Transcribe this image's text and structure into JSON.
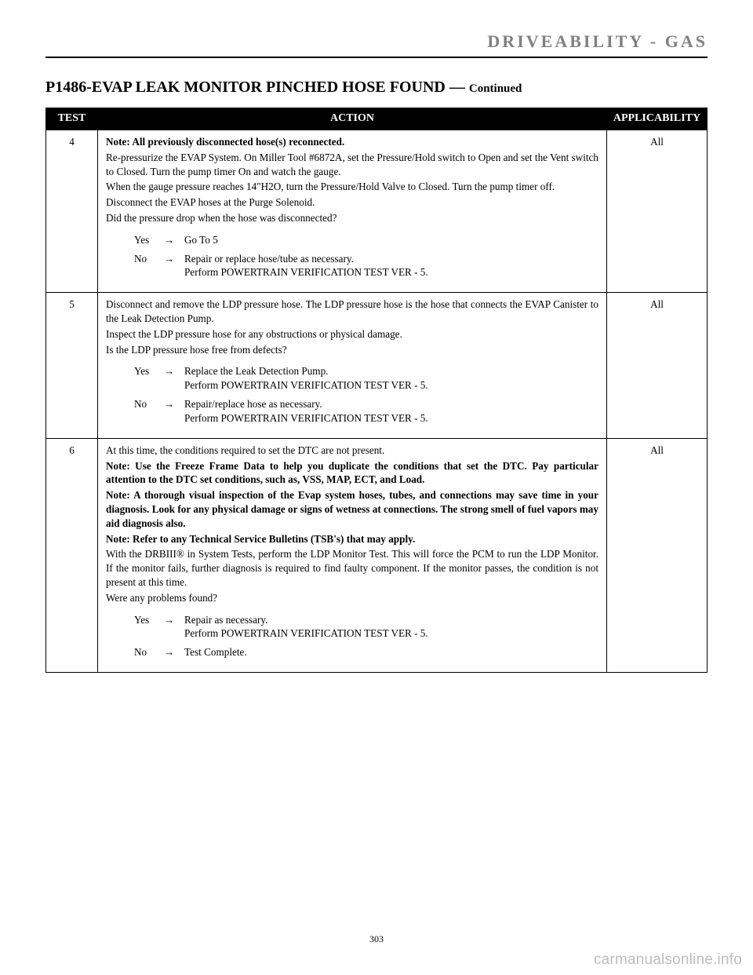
{
  "header": {
    "section": "DRIVEABILITY - GAS"
  },
  "title": {
    "main": "P1486-EVAP LEAK MONITOR PINCHED HOSE FOUND",
    "sep": " — ",
    "cont": "Continued"
  },
  "columns": {
    "test": "TEST",
    "action": "ACTION",
    "app": "APPLICABILITY"
  },
  "rows": [
    {
      "num": "4",
      "app": "All",
      "action": {
        "lines": [
          {
            "bold": true,
            "just": false,
            "text": "Note: All previously disconnected hose(s) reconnected."
          },
          {
            "bold": false,
            "just": true,
            "text": "Re-pressurize the EVAP System. On Miller Tool #6872A, set the Pressure/Hold switch to Open and set the Vent switch to Closed. Turn the pump timer On and watch the gauge."
          },
          {
            "bold": false,
            "just": true,
            "text": "When the gauge pressure reaches 14\"H2O, turn the Pressure/Hold Valve to Closed. Turn the pump timer off."
          },
          {
            "bold": false,
            "just": false,
            "text": "Disconnect the EVAP hoses at the Purge Solenoid."
          },
          {
            "bold": false,
            "just": false,
            "text": "Did the pressure drop when the hose was disconnected?"
          }
        ],
        "yes": {
          "label": "Yes",
          "arrow": "→",
          "lines": [
            "Go To   5"
          ]
        },
        "no": {
          "label": "No",
          "arrow": "→",
          "lines": [
            "Repair or replace hose/tube as necessary.",
            "Perform POWERTRAIN VERIFICATION TEST VER - 5."
          ]
        }
      }
    },
    {
      "num": "5",
      "app": "All",
      "action": {
        "lines": [
          {
            "bold": false,
            "just": true,
            "text": "Disconnect and remove the LDP pressure hose. The LDP pressure hose is the hose that connects the EVAP Canister to the Leak Detection Pump."
          },
          {
            "bold": false,
            "just": false,
            "text": "Inspect the LDP pressure hose for any obstructions or physical damage."
          },
          {
            "bold": false,
            "just": false,
            "text": "Is the LDP pressure hose free from defects?"
          }
        ],
        "yes": {
          "label": "Yes",
          "arrow": "→",
          "lines": [
            "Replace the Leak Detection Pump.",
            "Perform POWERTRAIN VERIFICATION TEST VER - 5."
          ]
        },
        "no": {
          "label": "No",
          "arrow": "→",
          "lines": [
            "Repair/replace hose as necessary.",
            "Perform POWERTRAIN VERIFICATION TEST VER - 5."
          ]
        }
      }
    },
    {
      "num": "6",
      "app": "All",
      "action": {
        "lines": [
          {
            "bold": false,
            "just": false,
            "text": "At this time, the conditions required to set the DTC are not present."
          },
          {
            "bold": true,
            "just": true,
            "text": "Note: Use the Freeze Frame Data to help you duplicate the conditions that set the DTC. Pay particular attention to the DTC set conditions, such as, VSS, MAP, ECT, and Load."
          },
          {
            "bold": true,
            "just": true,
            "text": "Note: A thorough visual inspection of the Evap system hoses, tubes, and connections may save time in your diagnosis. Look for any physical damage or signs of wetness at connections. The strong smell of fuel vapors may aid diagnosis also."
          },
          {
            "bold": true,
            "just": false,
            "text": "Note: Refer to any Technical Service Bulletins (TSB's) that may apply."
          },
          {
            "bold": false,
            "just": true,
            "text": "With the DRBIII® in System Tests, perform the LDP Monitor Test. This will force the PCM to run the LDP Monitor. If the monitor fails, further diagnosis is required to find faulty component. If the monitor passes, the condition is not present at this time."
          },
          {
            "bold": false,
            "just": false,
            "text": "Were any problems found?"
          }
        ],
        "yes": {
          "label": "Yes",
          "arrow": "→",
          "lines": [
            "Repair as necessary.",
            "Perform POWERTRAIN VERIFICATION TEST VER - 5."
          ]
        },
        "no": {
          "label": "No",
          "arrow": "→",
          "lines": [
            "Test Complete."
          ]
        }
      }
    }
  ],
  "footer": {
    "pagenum": "303",
    "watermark": "carmanualsonline.info"
  }
}
